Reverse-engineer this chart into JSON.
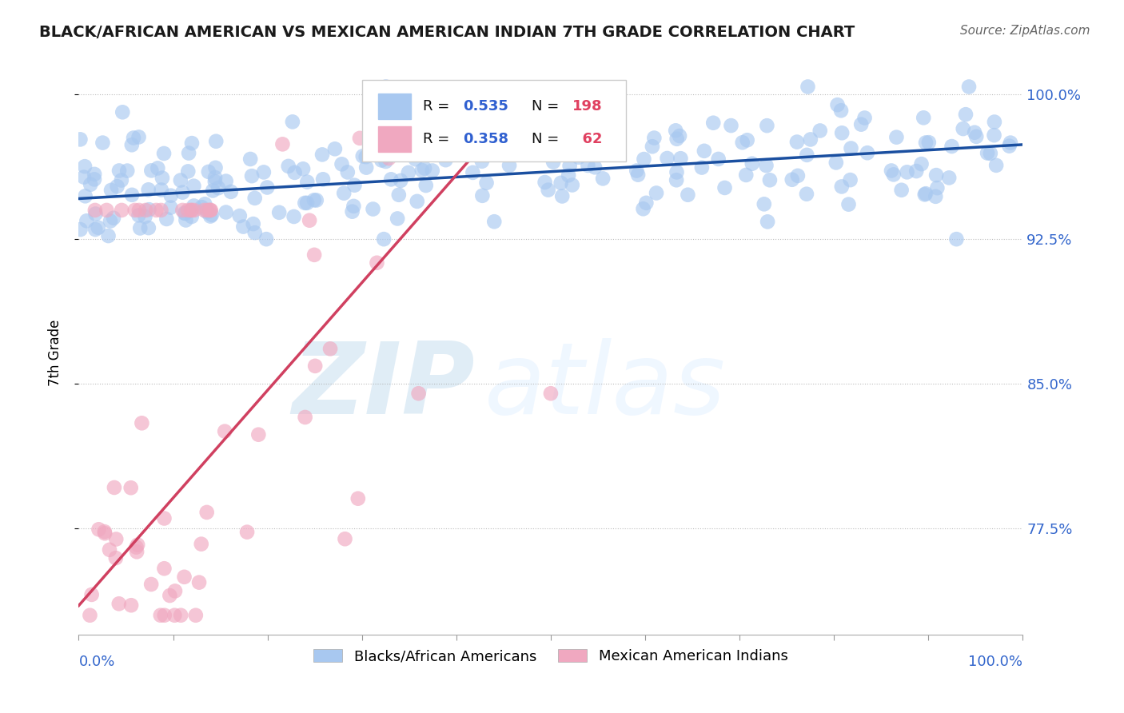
{
  "title": "BLACK/AFRICAN AMERICAN VS MEXICAN AMERICAN INDIAN 7TH GRADE CORRELATION CHART",
  "source": "Source: ZipAtlas.com",
  "ylabel": "7th Grade",
  "blue_label": "Blacks/African Americans",
  "pink_label": "Mexican American Indians",
  "blue_R": 0.535,
  "blue_N": 198,
  "pink_R": 0.358,
  "pink_N": 62,
  "blue_color": "#a8c8f0",
  "pink_color": "#f0a8c0",
  "blue_line_color": "#1a4fa0",
  "pink_line_color": "#d04060",
  "legend_R_color": "#3060d0",
  "legend_N_color": "#e04060",
  "xlim": [
    0.0,
    1.0
  ],
  "ylim": [
    0.72,
    1.012
  ],
  "yticks": [
    0.775,
    0.85,
    0.925,
    1.0
  ],
  "ytick_labels": [
    "77.5%",
    "85.0%",
    "92.5%",
    "100.0%"
  ],
  "blue_trend_y_start": 0.946,
  "blue_trend_y_end": 0.974,
  "pink_trend_x_start": 0.0,
  "pink_trend_x_end": 0.43,
  "pink_trend_y_start": 0.735,
  "pink_trend_y_end": 0.975,
  "watermark_zip": "ZIP",
  "watermark_atlas": "atlas",
  "background_color": "#ffffff"
}
